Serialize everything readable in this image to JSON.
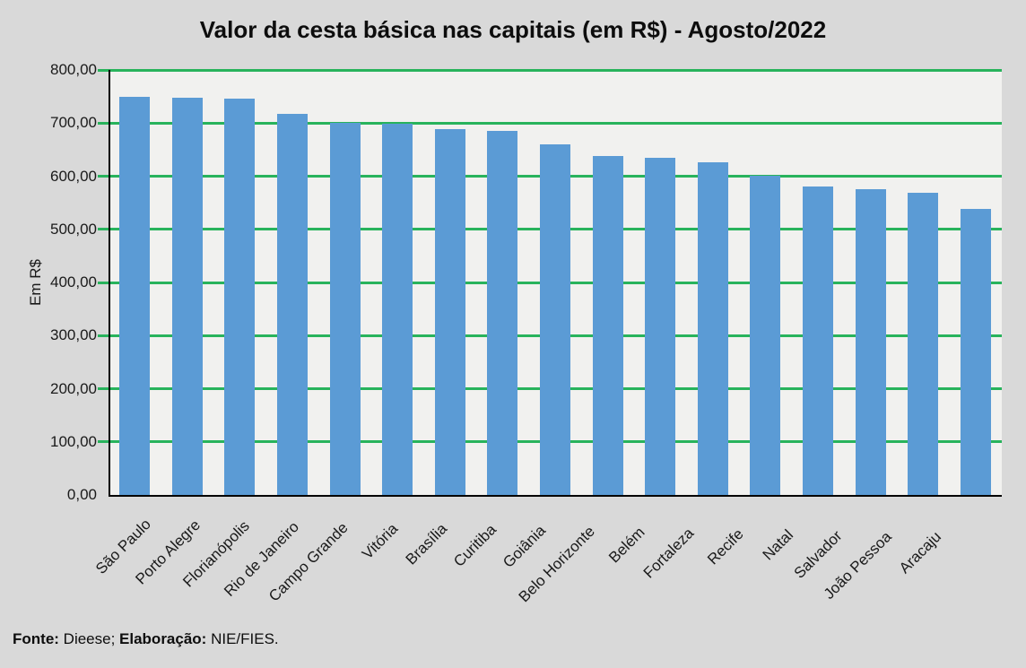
{
  "page": {
    "background": "#d9d9d9"
  },
  "chart_data": {
    "type": "bar",
    "title": "Valor da cesta básica nas capitais (em R$) - Agosto/2022",
    "xlabel": "",
    "ylabel": "Em R$",
    "categories": [
      "São Paulo",
      "Porto Alegre",
      "Florianópolis",
      "Rio de Janeiro",
      "Campo Grande",
      "Vitória",
      "Brasília",
      "Curitiba",
      "Goiânia",
      "Belo Horizonte",
      "Belém",
      "Fortaleza",
      "Recife",
      "Natal",
      "Salvador",
      "João Pessoa",
      "Aracaju"
    ],
    "values": [
      750,
      748,
      746,
      717,
      700,
      699,
      689,
      686,
      660,
      638,
      635,
      626,
      601,
      581,
      575,
      569,
      539
    ],
    "ylim": [
      0,
      800
    ],
    "ytick_step": 100,
    "ytick_labels": [
      "0,00",
      "100,00",
      "200,00",
      "300,00",
      "400,00",
      "500,00",
      "600,00",
      "700,00",
      "800,00"
    ],
    "grid": true,
    "legend": false,
    "bar_color": "#5b9bd5",
    "gridline_color": "#28b35c",
    "plot_background": "#f1f1ef",
    "axis_color": "#000000"
  },
  "footer": {
    "fonte_label": "Fonte:",
    "fonte_value": " Dieese; ",
    "elab_label": "Elaboração:",
    "elab_value": " NIE/FIES."
  }
}
